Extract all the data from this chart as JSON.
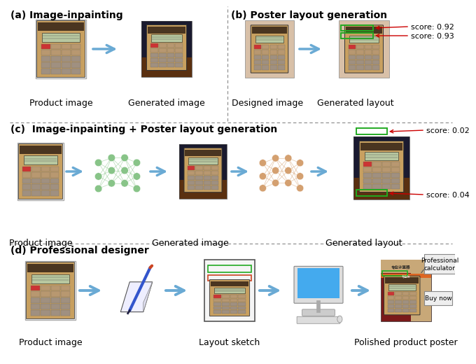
{
  "bg_color": "#ffffff",
  "panel_a_label": "(a) Image-inpainting",
  "panel_b_label": "(b) Poster layout generation",
  "panel_c_label": "(c)  Image-inpainting + Poster layout generation",
  "panel_d_label": "(d) Professional designer",
  "panel_a_subs": [
    "Product image",
    "Generated image"
  ],
  "panel_b_subs": [
    "Designed image",
    "Generated layout"
  ],
  "panel_b_scores": [
    "score: 0.92",
    "score: 0.93"
  ],
  "panel_c_subs": [
    "Product image",
    "Generated image",
    "Generated layout"
  ],
  "panel_c_scores": [
    "score: 0.02",
    "score: 0.04"
  ],
  "panel_d_subs": [
    "Product image",
    "Layout sketch",
    "Polished product poster"
  ],
  "panel_d_annotations": [
    "Professional\ncalculator",
    "Buy now"
  ],
  "arrow_color": "#6aaad4",
  "divider_color": "#888888",
  "green_color": "#22aa22",
  "red_arrow_color": "#cc0000",
  "label_fontsize": 10,
  "sub_fontsize": 9,
  "score_fontsize": 8
}
